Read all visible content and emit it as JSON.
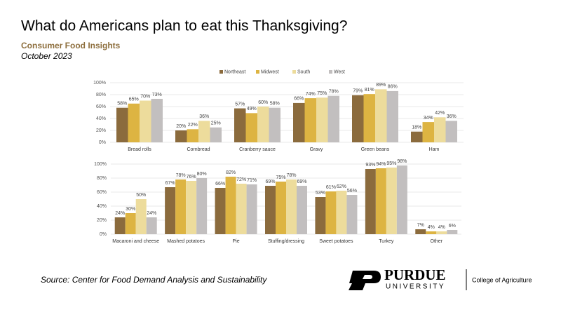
{
  "header": {
    "title": "What do Americans plan to eat this Thanksgiving?",
    "subtitle": "Consumer Food Insights",
    "date": "October 2023"
  },
  "chart_data": [
    {
      "type": "bar",
      "legend": "top-center",
      "grid": true,
      "categories": [
        "Bread rolls",
        "Cornbread",
        "Cranberry sauce",
        "Gravy",
        "Green beans",
        "Ham"
      ],
      "ylim": [
        0,
        100
      ],
      "yticks": [
        {
          "value": 0,
          "label": "0%"
        },
        {
          "value": 20,
          "label": "20%"
        },
        {
          "value": 40,
          "label": "40%"
        },
        {
          "value": 60,
          "label": "60%"
        },
        {
          "value": 80,
          "label": "80%"
        },
        {
          "value": 100,
          "label": "100%"
        }
      ],
      "series": [
        {
          "name": "Northeast",
          "color": "#8b6b3d",
          "values": [
            58,
            20,
            57,
            66,
            79,
            18
          ],
          "value_labels": [
            "58%",
            "20%",
            "57%",
            "66%",
            "79%",
            "18%"
          ]
        },
        {
          "name": "Midwest",
          "color": "#ddb442",
          "values": [
            65,
            22,
            49,
            74,
            81,
            34
          ],
          "value_labels": [
            "65%",
            "22%",
            "49%",
            "74%",
            "81%",
            "34%"
          ]
        },
        {
          "name": "South",
          "color": "#eddc9c",
          "values": [
            70,
            36,
            60,
            75,
            89,
            42
          ],
          "value_labels": [
            "70%",
            "36%",
            "60%",
            "75%",
            "89%",
            "42%"
          ]
        },
        {
          "name": "West",
          "color": "#c2bfbf",
          "values": [
            73,
            25,
            58,
            78,
            86,
            36
          ],
          "value_labels": [
            "73%",
            "25%",
            "58%",
            "78%",
            "86%",
            "36%"
          ]
        }
      ]
    },
    {
      "type": "bar",
      "grid": true,
      "categories": [
        "Macaroni and cheese",
        "Mashed potatoes",
        "Pie",
        "Stuffing/dressing",
        "Sweet potatoes",
        "Turkey",
        "Other"
      ],
      "ylim": [
        0,
        100
      ],
      "yticks": [
        {
          "value": 0,
          "label": "0%"
        },
        {
          "value": 20,
          "label": "20%"
        },
        {
          "value": 40,
          "label": "40%"
        },
        {
          "value": 60,
          "label": "60%"
        },
        {
          "value": 80,
          "label": "80%"
        },
        {
          "value": 100,
          "label": "100%"
        }
      ],
      "series": [
        {
          "color": "#8b6b3d",
          "values": [
            24,
            67,
            66,
            69,
            53,
            93,
            7
          ],
          "value_labels": [
            "24%",
            "67%",
            "66%",
            "69%",
            "53%",
            "93%",
            "7%"
          ]
        },
        {
          "color": "#ddb442",
          "values": [
            30,
            78,
            82,
            75,
            61,
            94,
            4
          ],
          "value_labels": [
            "30%",
            "78%",
            "82%",
            "75%",
            "61%",
            "94%",
            "4%"
          ]
        },
        {
          "color": "#eddc9c",
          "values": [
            50,
            76,
            72,
            78,
            62,
            95,
            4
          ],
          "value_labels": [
            "50%",
            "76%",
            "72%",
            "78%",
            "62%",
            "95%",
            "4%"
          ]
        },
        {
          "color": "#c2bfbf",
          "values": [
            24,
            80,
            71,
            69,
            56,
            98,
            6
          ],
          "value_labels": [
            "24%",
            "80%",
            "71%",
            "69%",
            "56%",
            "98%",
            "6%"
          ]
        }
      ]
    }
  ],
  "footer": {
    "source": "Source:  Center for Food Demand Analysis and Sustainability",
    "logo_name": "PURDUE",
    "logo_sub": "UNIVERSITY",
    "college": "College of Agriculture"
  }
}
